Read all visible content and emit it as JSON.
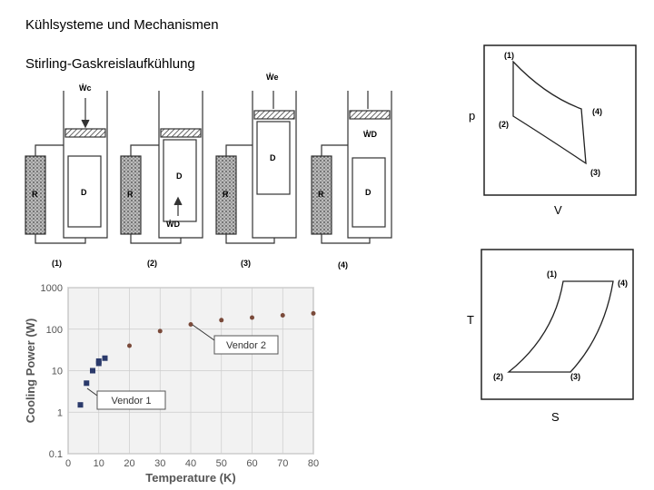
{
  "header": {
    "title": "Kühlsysteme und Mechanismen",
    "subtitle": "Stirling-Gaskreislaufkühlung"
  },
  "stirling": {
    "work_labels": [
      "Ẇc",
      "Ẇe",
      "ẆD",
      "ẆD"
    ],
    "regenerator": "R",
    "displacer": "D",
    "steps": [
      "(1)",
      "(2)",
      "(3)",
      "(4)"
    ]
  },
  "pv_diagram": {
    "y_label": "p",
    "x_label": "V",
    "points": [
      "(1)",
      "(2)",
      "(3)",
      "(4)"
    ]
  },
  "ts_diagram": {
    "y_label": "T",
    "x_label": "S",
    "points": [
      "(1)",
      "(2)",
      "(3)",
      "(4)"
    ]
  },
  "chart_data": {
    "type": "scatter",
    "x_label": "Temperature (K)",
    "y_label": "Cooling Power (W)",
    "xlim": [
      0,
      80
    ],
    "xticks": [
      0,
      10,
      20,
      30,
      40,
      50,
      60,
      70,
      80
    ],
    "ylim": [
      0.1,
      1000
    ],
    "yticks": [
      0.1,
      1,
      10,
      100,
      1000
    ],
    "log_y": true,
    "grid": true,
    "series": [
      {
        "name": "Vendor 1",
        "color": "#2b3a6b",
        "marker": "square",
        "x": [
          4,
          6,
          8,
          10,
          10,
          12
        ],
        "values": [
          1.5,
          5,
          10,
          15,
          17,
          20
        ]
      },
      {
        "name": "Vendor 2",
        "color": "#7a4a3a",
        "marker": "circle",
        "x": [
          20,
          30,
          40,
          50,
          60,
          70,
          80
        ],
        "values": [
          40,
          90,
          130,
          165,
          190,
          215,
          240
        ]
      }
    ]
  }
}
